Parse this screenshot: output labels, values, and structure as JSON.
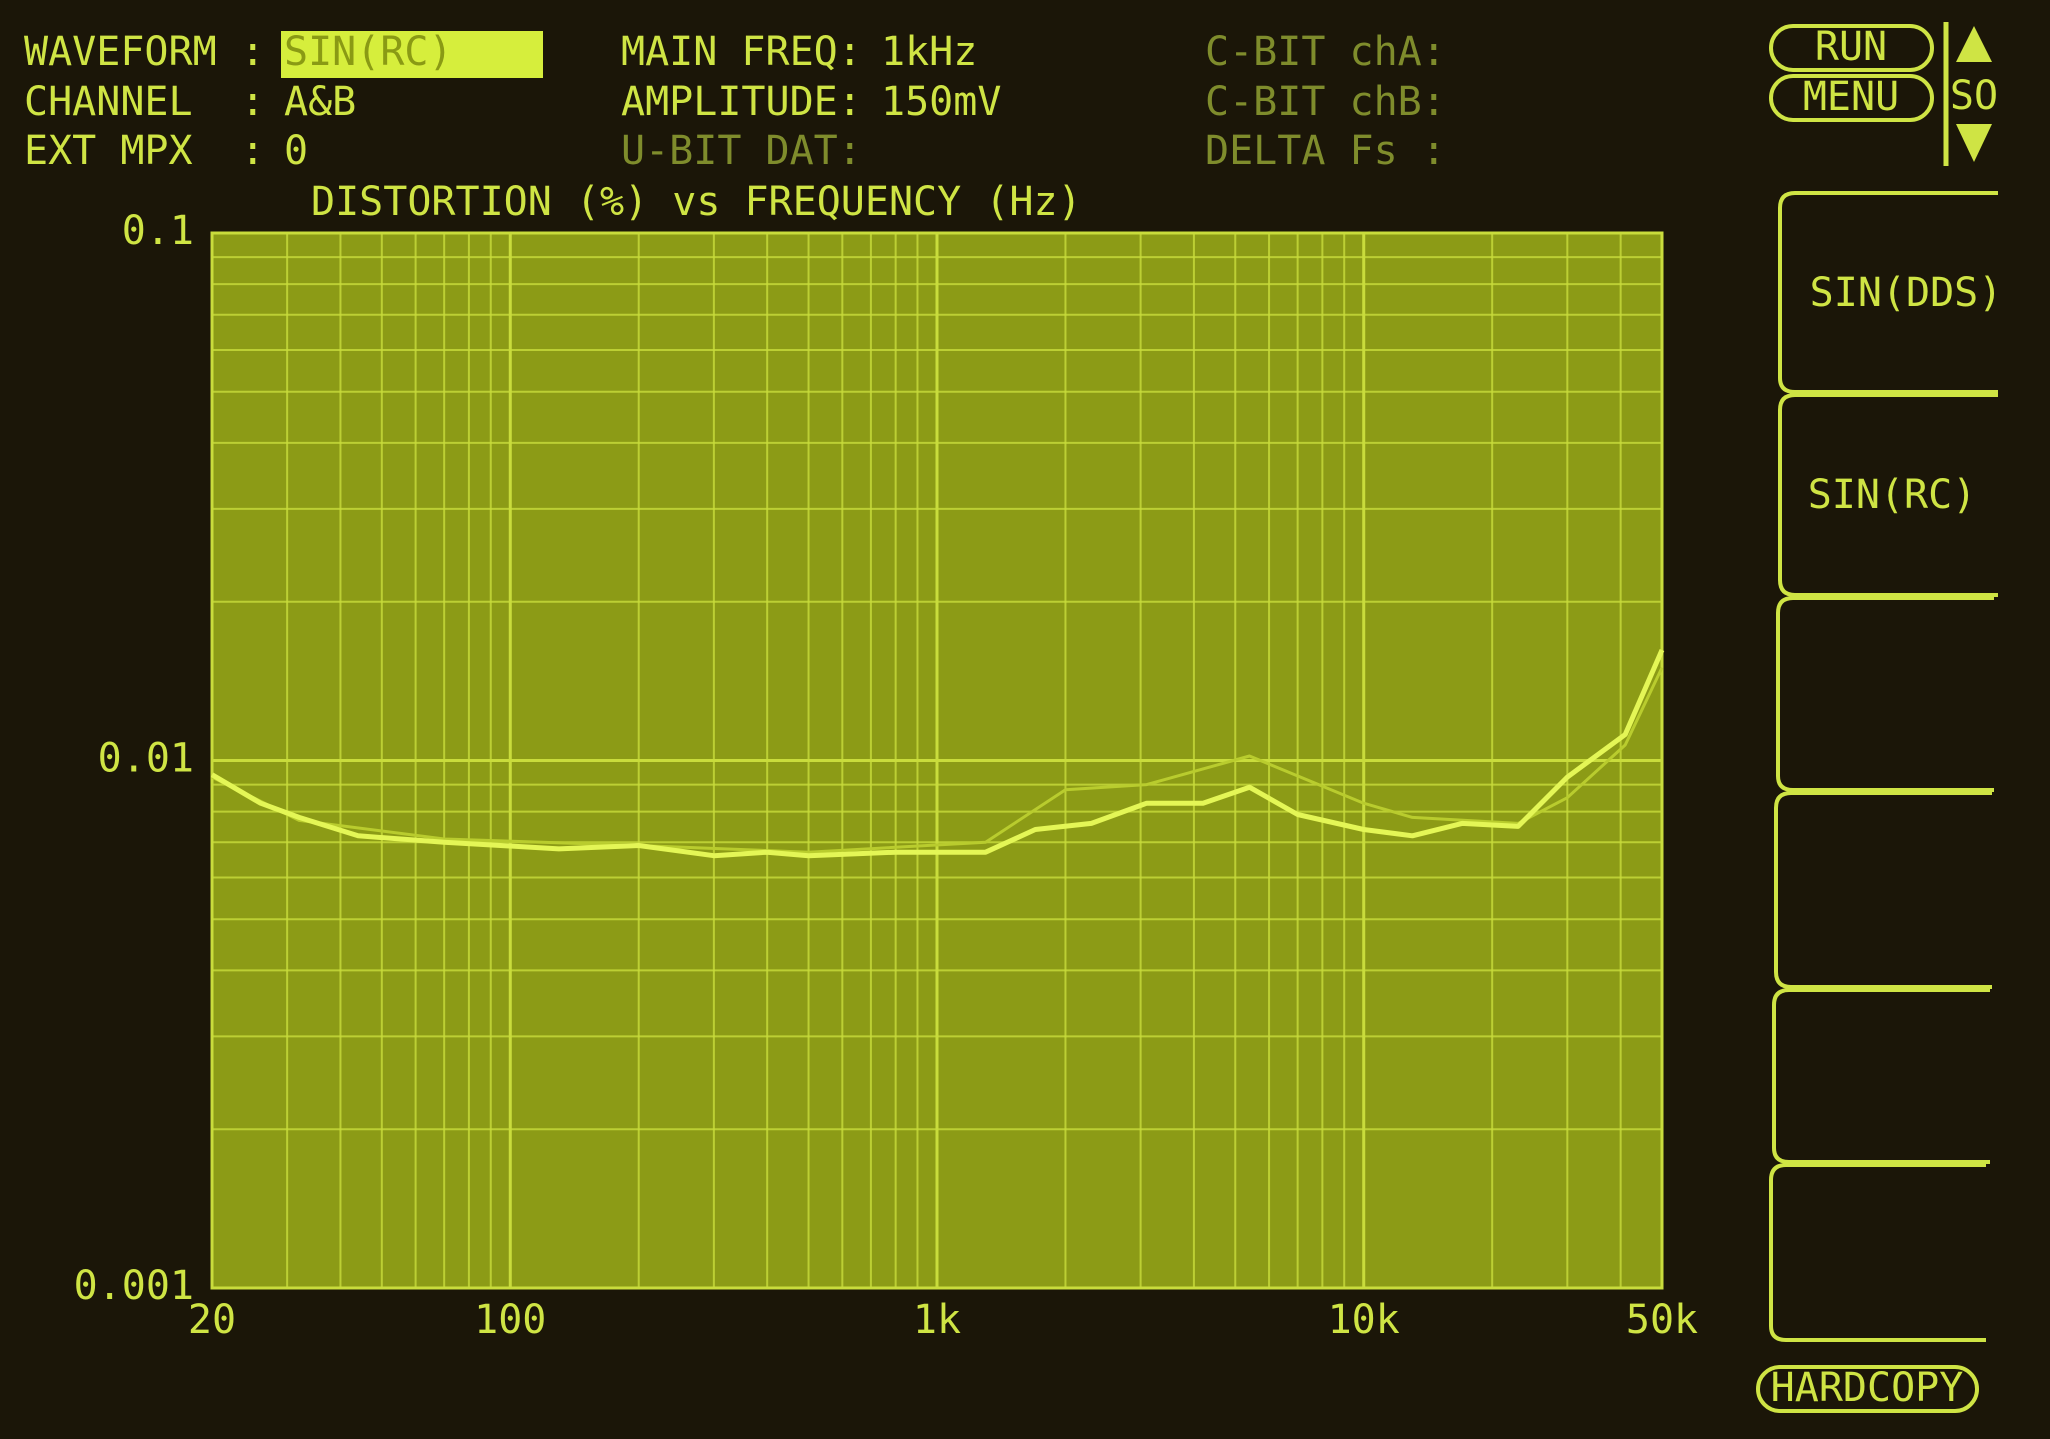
{
  "header": {
    "fields": [
      {
        "label": "WAVEFORM :",
        "value": "SIN(RC)"
      },
      {
        "label": "CHANNEL  :",
        "value": "A&B"
      },
      {
        "label": "EXT MPX  :",
        "value": "0"
      },
      {
        "label": "MAIN FREQ:",
        "value": "1kHz"
      },
      {
        "label": "AMPLITUDE:",
        "value": "150mV"
      },
      {
        "label": "U-BIT DAT:"
      },
      {
        "label": "C-BIT chA:"
      },
      {
        "label": "C-BIT chB:"
      },
      {
        "label": "DELTA Fs :"
      }
    ]
  },
  "controls": {
    "run": "RUN",
    "menu": "MENU",
    "scroll": "SO",
    "hardcopy": "HARDCOPY"
  },
  "softkeys": [
    "SIN(DDS)",
    "SIN(RC)"
  ],
  "chart_data": {
    "type": "line",
    "title": "DISTORTION (%) vs FREQUENCY (Hz)",
    "x_log": true,
    "y_log": true,
    "grid": true,
    "minor_grid": true,
    "xlim": [
      20,
      50000
    ],
    "ylim": [
      0.001,
      0.1
    ],
    "xticks": [
      20,
      100,
      {
        "value": 1000,
        "label": "1k"
      },
      {
        "value": 10000,
        "label": "10k"
      },
      {
        "value": 50000,
        "label": "50k"
      }
    ],
    "yticks": [
      0.001,
      0.01,
      0.1
    ],
    "series": [
      {
        "color": "#e4f656",
        "x": [
          20,
          26,
          32,
          44,
          70,
          130,
          200,
          300,
          400,
          500,
          800,
          1300,
          1700,
          2300,
          3100,
          4200,
          5400,
          7000,
          10000,
          13000,
          17000,
          23000,
          30000,
          41000,
          50000
        ],
        "values": [
          0.0094,
          0.0083,
          0.0078,
          0.0072,
          0.007,
          0.0068,
          0.0069,
          0.0066,
          0.0067,
          0.0066,
          0.0067,
          0.0067,
          0.0074,
          0.0076,
          0.0083,
          0.0083,
          0.0089,
          0.0079,
          0.0074,
          0.0072,
          0.0076,
          0.0075,
          0.0093,
          0.0112,
          0.0162
        ]
      },
      {
        "color": "#b9cc2e",
        "x": [
          20,
          32,
          70,
          200,
          500,
          1300,
          2000,
          3100,
          5400,
          10000,
          13000,
          23000,
          30000,
          41000,
          50000
        ],
        "values": [
          0.0093,
          0.0077,
          0.0071,
          0.0069,
          0.0067,
          0.007,
          0.0088,
          0.009,
          0.0102,
          0.0083,
          0.0078,
          0.0076,
          0.0085,
          0.0107,
          0.015
        ]
      }
    ]
  }
}
